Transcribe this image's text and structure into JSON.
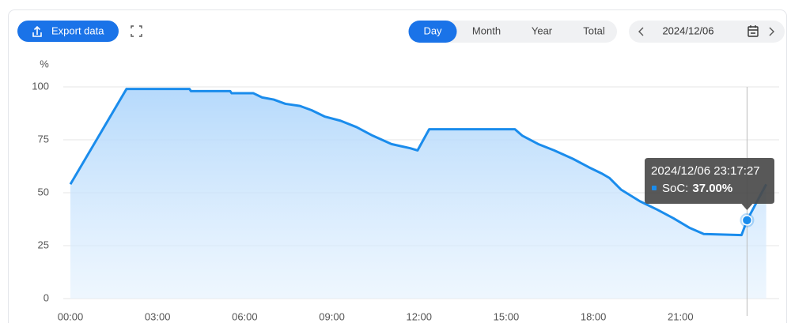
{
  "toolbar": {
    "export": "Export data",
    "tabs": [
      "Day",
      "Month",
      "Year",
      "Total"
    ],
    "active_tab": 0,
    "date": "2024/12/06"
  },
  "chart_data": {
    "type": "line",
    "y_label": "%",
    "x": [
      0,
      1.93,
      2.7,
      4.1,
      4.15,
      5.5,
      5.55,
      6.3,
      6.6,
      7.0,
      7.4,
      7.9,
      8.3,
      8.75,
      9.3,
      9.85,
      10.4,
      11.05,
      11.7,
      11.95,
      12.35,
      15.3,
      15.55,
      16.1,
      16.65,
      17.3,
      17.85,
      18.3,
      18.55,
      18.95,
      19.6,
      20.2,
      20.75,
      21.3,
      21.8,
      23.1,
      23.29,
      23.95
    ],
    "series": [
      {
        "name": "SoC",
        "color": "#1a8cec",
        "values": [
          54,
          99,
          99,
          99,
          98,
          98,
          97,
          97,
          95,
          94,
          92,
          91,
          89,
          86,
          84,
          81,
          77,
          73,
          71,
          70,
          80,
          80,
          77,
          73,
          70,
          66,
          62,
          59,
          57,
          51.5,
          46,
          42,
          38,
          33.5,
          30.5,
          30,
          37,
          54
        ]
      }
    ],
    "xlim": [
      0,
      24
    ],
    "ylim": [
      0,
      100
    ],
    "xticks": [
      {
        "value": 0,
        "label": "00:00"
      },
      {
        "value": 3,
        "label": "03:00"
      },
      {
        "value": 6,
        "label": "06:00"
      },
      {
        "value": 9,
        "label": "09:00"
      },
      {
        "value": 12,
        "label": "12:00"
      },
      {
        "value": 15,
        "label": "15:00"
      },
      {
        "value": 18,
        "label": "18:00"
      },
      {
        "value": 21,
        "label": "21:00"
      }
    ],
    "yticks": [
      0,
      25,
      50,
      75,
      100
    ],
    "grid": true,
    "tooltip": {
      "title": "2024/12/06 23:17:27",
      "series": "SoC:",
      "x": 23.29,
      "value": 37,
      "value_label": "37.00%"
    }
  }
}
